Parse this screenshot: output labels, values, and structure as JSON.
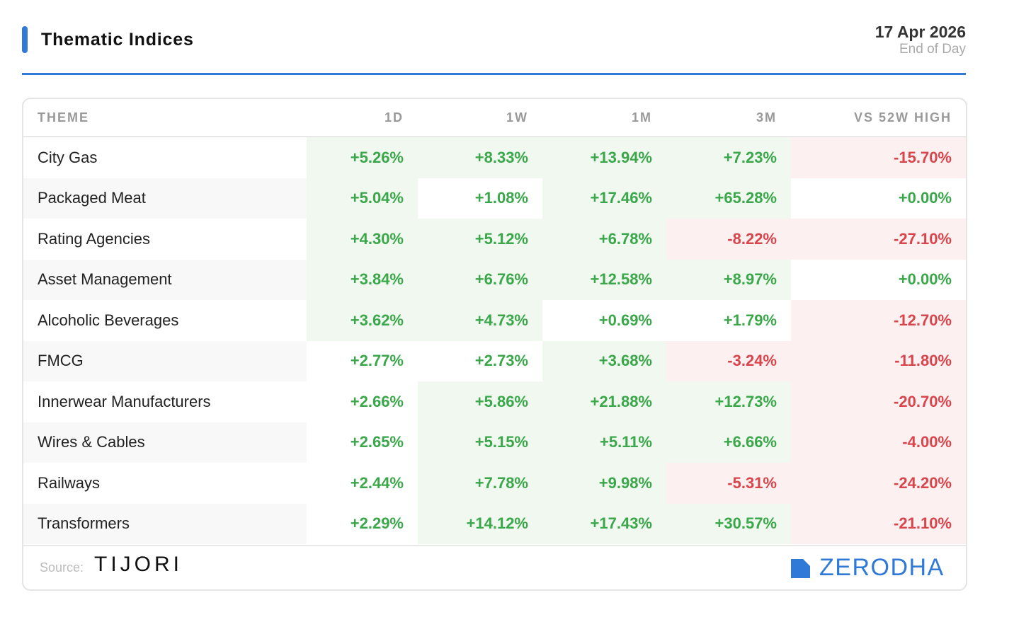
{
  "header": {
    "title": "Thematic Indices",
    "date": "17 Apr 2026",
    "subtitle": "End of Day"
  },
  "colors": {
    "accent": "#2f7ad6",
    "positive": "#3aa84a",
    "negative": "#d9454c",
    "positive_bg": "#f0f8ef",
    "negative_bg": "#fdf0f0"
  },
  "chart_data": {
    "type": "table",
    "title": "Thematic Indices",
    "columns": [
      "THEME",
      "1D",
      "1W",
      "1M",
      "3M",
      "VS 52W HIGH"
    ],
    "rows": [
      {
        "theme": "City Gas",
        "values": [
          "+5.26%",
          "+8.33%",
          "+13.94%",
          "+7.23%",
          "-15.70%"
        ],
        "bg": [
          "g",
          "g",
          "g",
          "g",
          "r"
        ]
      },
      {
        "theme": "Packaged Meat",
        "values": [
          "+5.04%",
          "+1.08%",
          "+17.46%",
          "+65.28%",
          "+0.00%"
        ],
        "bg": [
          "g",
          "w",
          "g",
          "g",
          "w"
        ]
      },
      {
        "theme": "Rating Agencies",
        "values": [
          "+4.30%",
          "+5.12%",
          "+6.78%",
          "-8.22%",
          "-27.10%"
        ],
        "bg": [
          "g",
          "g",
          "g",
          "r",
          "r"
        ]
      },
      {
        "theme": "Asset Management",
        "values": [
          "+3.84%",
          "+6.76%",
          "+12.58%",
          "+8.97%",
          "+0.00%"
        ],
        "bg": [
          "g",
          "g",
          "g",
          "g",
          "w"
        ]
      },
      {
        "theme": "Alcoholic Beverages",
        "values": [
          "+3.62%",
          "+4.73%",
          "+0.69%",
          "+1.79%",
          "-12.70%"
        ],
        "bg": [
          "g",
          "g",
          "w",
          "w",
          "r"
        ]
      },
      {
        "theme": "FMCG",
        "values": [
          "+2.77%",
          "+2.73%",
          "+3.68%",
          "-3.24%",
          "-11.80%"
        ],
        "bg": [
          "w",
          "w",
          "g",
          "r",
          "r"
        ]
      },
      {
        "theme": "Innerwear Manufacturers",
        "values": [
          "+2.66%",
          "+5.86%",
          "+21.88%",
          "+12.73%",
          "-20.70%"
        ],
        "bg": [
          "w",
          "g",
          "g",
          "g",
          "r"
        ]
      },
      {
        "theme": "Wires & Cables",
        "values": [
          "+2.65%",
          "+5.15%",
          "+5.11%",
          "+6.66%",
          "-4.00%"
        ],
        "bg": [
          "w",
          "g",
          "g",
          "g",
          "r"
        ]
      },
      {
        "theme": "Railways",
        "values": [
          "+2.44%",
          "+7.78%",
          "+9.98%",
          "-5.31%",
          "-24.20%"
        ],
        "bg": [
          "w",
          "g",
          "g",
          "r",
          "r"
        ]
      },
      {
        "theme": "Transformers",
        "values": [
          "+2.29%",
          "+14.12%",
          "+17.43%",
          "+30.57%",
          "-21.10%"
        ],
        "bg": [
          "w",
          "g",
          "g",
          "g",
          "r"
        ]
      }
    ]
  },
  "footer": {
    "source_label": "Source:",
    "source_brand": "TIJORI",
    "brand": "ZERODHA",
    "brand_icon": "zerodha-logo-icon"
  }
}
